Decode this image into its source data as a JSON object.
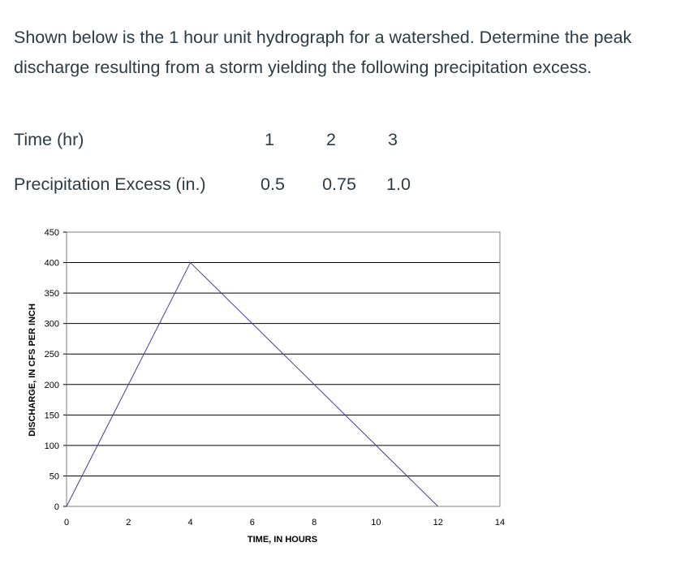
{
  "question": {
    "text": "Shown below is the 1 hour unit hydrograph for a watershed.  Determine the peak discharge resulting from a storm yielding the following precipitation excess."
  },
  "table": {
    "time_label": "Time (hr)",
    "time_values": [
      "1",
      "2",
      "3"
    ],
    "precip_label": "Precipitation Excess (in.)",
    "precip_values": [
      "0.5",
      "0.75",
      "1.0"
    ]
  },
  "chart_data": {
    "type": "line",
    "xlabel": "TIME, IN HOURS",
    "ylabel": "DISCHARGE, IN CFS PER INCH",
    "xlim": [
      0,
      14
    ],
    "ylim": [
      0,
      450
    ],
    "x_ticks": [
      0,
      2,
      4,
      6,
      8,
      10,
      12,
      14
    ],
    "y_ticks": [
      0,
      50,
      100,
      150,
      200,
      250,
      300,
      350,
      400,
      450
    ],
    "grid": "horizontal",
    "series": [
      {
        "x": [
          0,
          4,
          12
        ],
        "y": [
          0,
          400,
          0
        ],
        "color": "#3f3fa0"
      }
    ]
  }
}
